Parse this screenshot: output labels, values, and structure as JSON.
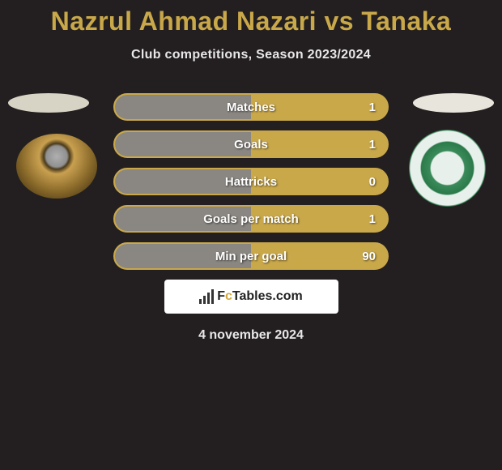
{
  "title": "Nazrul Ahmad Nazari vs Tanaka",
  "subtitle": "Club competitions, Season 2023/2024",
  "date": "4 november 2024",
  "brand": {
    "prefix": "F",
    "c": "c",
    "suffix": "Tables.com"
  },
  "colors": {
    "accent": "#c9a84a",
    "bar_fill": "#8a8681",
    "bg": "#231f20",
    "text": "#e8e8e8"
  },
  "stats": [
    {
      "label": "Matches",
      "value": "1",
      "fill_pct": 50
    },
    {
      "label": "Goals",
      "value": "1",
      "fill_pct": 50
    },
    {
      "label": "Hattricks",
      "value": "0",
      "fill_pct": 50
    },
    {
      "label": "Goals per match",
      "value": "1",
      "fill_pct": 50
    },
    {
      "label": "Min per goal",
      "value": "90",
      "fill_pct": 50
    }
  ]
}
